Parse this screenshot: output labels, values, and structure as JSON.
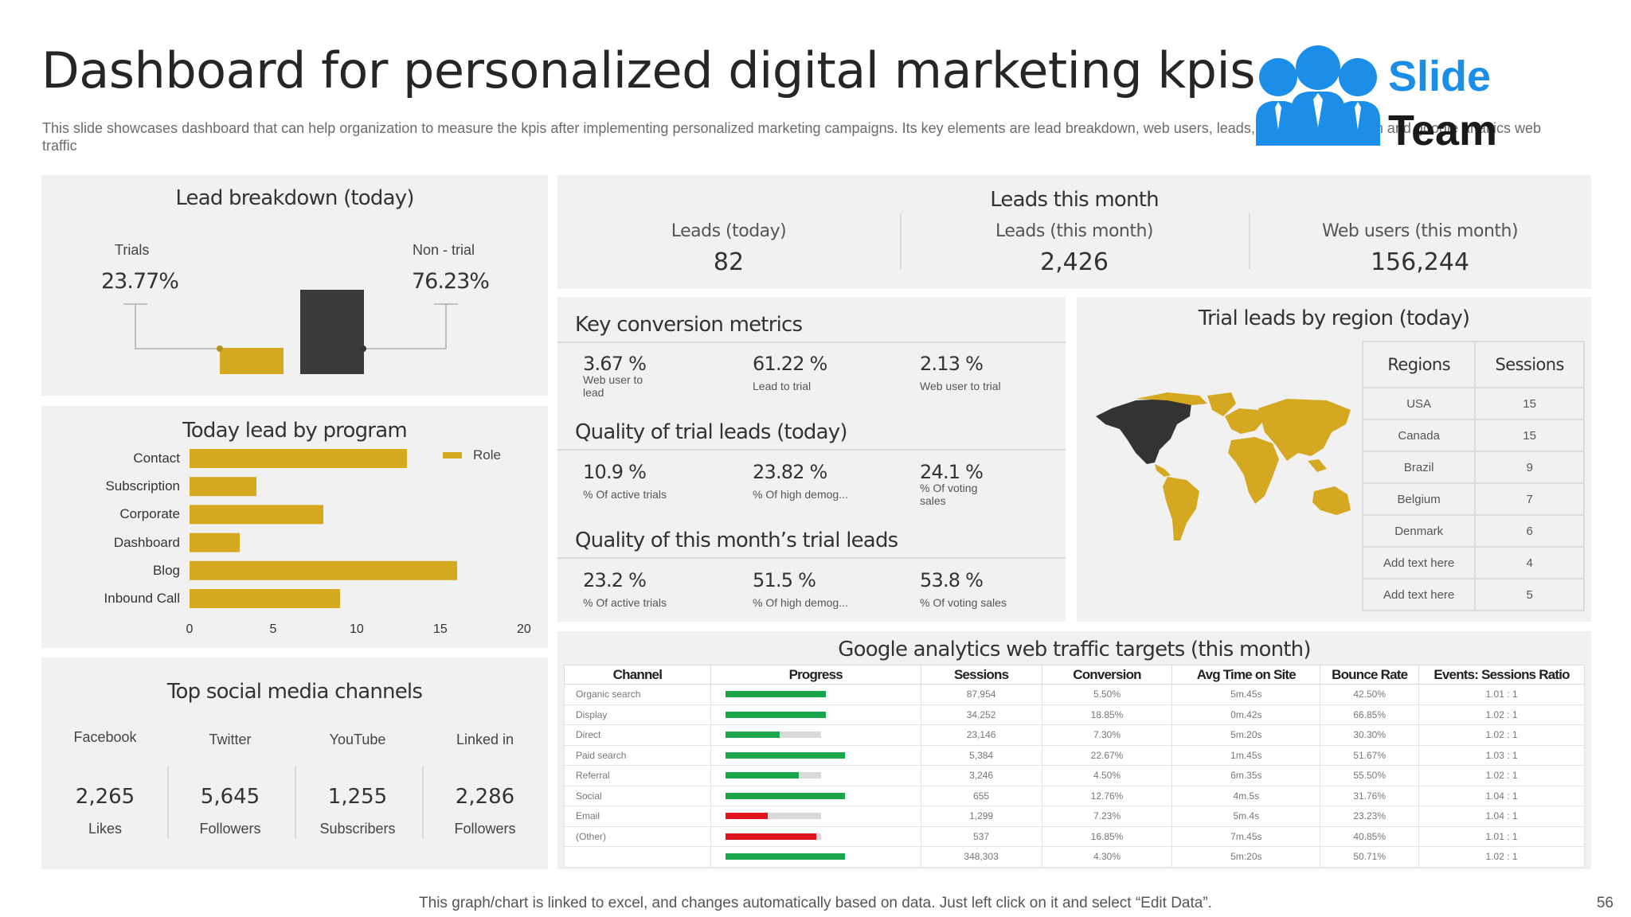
{
  "title": "Dashboard for personalized digital marketing kpis",
  "subtitle": "This slide showcases dashboard that can help organization to measure the kpis after implementing personalized marketing campaigns. Its key elements are lead breakdown, web users, leads, trial leads by region and google analtics web traffic",
  "logo": {
    "word1": "Slide",
    "word2": "Team",
    "color": "#1a8ee8"
  },
  "lead_breakdown": {
    "title": "Lead breakdown (today)",
    "trials_label": "Trials",
    "trials_value": "23.77%",
    "nontrial_label": "Non - trial",
    "nontrial_value": "76.23%",
    "chart_data": {
      "type": "bar",
      "categories": [
        "Trials",
        "Non - trial"
      ],
      "values": [
        23.77,
        76.23
      ],
      "colors": [
        "#d4a820",
        "#3a3a3a"
      ]
    }
  },
  "lead_by_program": {
    "title": "Today lead by program",
    "chart_data": {
      "type": "bar",
      "orientation": "horizontal",
      "categories": [
        "Contact",
        "Subscription",
        "Corporate",
        "Dashboard",
        "Blog",
        "Inbound Call"
      ],
      "series": [
        {
          "name": "Role",
          "values": [
            13,
            4,
            8,
            3,
            16,
            9
          ]
        }
      ],
      "xlim": [
        0,
        20
      ],
      "xticks": [
        "0",
        "5",
        "10",
        "15",
        "20"
      ],
      "color": "#d4a820",
      "legend": "top-right"
    }
  },
  "social": {
    "title": "Top social media channels",
    "channels": [
      {
        "name": "Facebook",
        "value": "2,265",
        "unit": "Likes"
      },
      {
        "name": "Twitter",
        "value": "5,645",
        "unit": "Followers"
      },
      {
        "name": "YouTube",
        "value": "1,255",
        "unit": "Subscribers"
      },
      {
        "name": "Linked in",
        "value": "2,286",
        "unit": "Followers"
      }
    ]
  },
  "leads_month": {
    "title": "Leads this month",
    "items": [
      {
        "label": "Leads (today)",
        "value": "82"
      },
      {
        "label": "Leads (this month)",
        "value": "2,426"
      },
      {
        "label": "Web users (this month)",
        "value": "156,244"
      }
    ]
  },
  "conversion": {
    "title": "Key conversion metrics",
    "items": [
      {
        "value": "3.67 %",
        "label": "Web user to lead"
      },
      {
        "value": "61.22 %",
        "label": "Lead to trial"
      },
      {
        "value": "2.13 %",
        "label": "Web user to trial"
      }
    ]
  },
  "quality_today": {
    "title": "Quality of trial leads (today)",
    "items": [
      {
        "value": "10.9 %",
        "label": "% Of active trials"
      },
      {
        "value": "23.82 %",
        "label": "% Of high demog..."
      },
      {
        "value": "24.1 %",
        "label": "% Of voting sales"
      }
    ]
  },
  "quality_month": {
    "title": "Quality of this month’s trial leads",
    "items": [
      {
        "value": "23.2 %",
        "label": "% Of active trials"
      },
      {
        "value": "51.5 %",
        "label": "% Of high demog..."
      },
      {
        "value": "53.8 %",
        "label": "% Of voting sales"
      }
    ]
  },
  "region": {
    "title": "Trial leads by region (today)",
    "headers": [
      "Regions",
      "Sessions"
    ],
    "rows": [
      [
        "USA",
        "15"
      ],
      [
        "Canada",
        "15"
      ],
      [
        "Brazil",
        "9"
      ],
      [
        "Belgium",
        "7"
      ],
      [
        "Denmark",
        "6"
      ],
      [
        "Add text here",
        "4"
      ],
      [
        "Add text here",
        "5"
      ]
    ],
    "map_color": "#d4a820",
    "highlight_color": "#333333"
  },
  "ga": {
    "title": "Google analytics web traffic targets (this month)",
    "headers": [
      "Channel",
      "Progress",
      "Sessions",
      "Conversion",
      "Avg Time on Site",
      "Bounce Rate",
      "Events: Sessions Ratio"
    ],
    "rows": [
      {
        "channel": "Organic search",
        "progress": 1.05,
        "status": "green",
        "sessions": "87,954",
        "conversion": "5.50%",
        "time": "5m.45s",
        "bounce": "42.50%",
        "ratio": "1.01 : 1"
      },
      {
        "channel": "Display",
        "progress": 1.05,
        "status": "green",
        "sessions": "34,252",
        "conversion": "18.85%",
        "time": "0m.42s",
        "bounce": "66.85%",
        "ratio": "1.02 : 1"
      },
      {
        "channel": "Direct",
        "progress": 0.57,
        "status": "green",
        "sessions": "23,146",
        "conversion": "7.30%",
        "time": "5m.20s",
        "bounce": "30.30%",
        "ratio": "1.02 : 1"
      },
      {
        "channel": "Paid search",
        "progress": 1.25,
        "status": "green",
        "sessions": "5,384",
        "conversion": "22.67%",
        "time": "1m.45s",
        "bounce": "51.67%",
        "ratio": "1.03 : 1"
      },
      {
        "channel": "Referral",
        "progress": 0.77,
        "status": "green",
        "sessions": "3,246",
        "conversion": "4.50%",
        "time": "6m.35s",
        "bounce": "55.50%",
        "ratio": "1.02 : 1"
      },
      {
        "channel": "Social",
        "progress": 1.25,
        "status": "green",
        "sessions": "655",
        "conversion": "12.76%",
        "time": "4m.5s",
        "bounce": "31.76%",
        "ratio": "1.04 : 1"
      },
      {
        "channel": "Email",
        "progress": 0.44,
        "status": "red",
        "sessions": "1,299",
        "conversion": "7.23%",
        "time": "5m.4s",
        "bounce": "23.23%",
        "ratio": "1.04 : 1"
      },
      {
        "channel": "(Other)",
        "progress": 0.95,
        "status": "red",
        "sessions": "537",
        "conversion": "16.85%",
        "time": "7m.45s",
        "bounce": "40.85%",
        "ratio": "1.01 : 1"
      },
      {
        "channel": "",
        "progress": 1.25,
        "status": "green",
        "sessions": "348,303",
        "conversion": "4.30%",
        "time": "5m:20s",
        "bounce": "50.71%",
        "ratio": "1.02 : 1"
      }
    ],
    "colors": {
      "green": "#1aa64a",
      "red": "#e0141e"
    }
  },
  "footer": "This graph/chart is linked to excel, and changes automatically based on data. Just left click on it and select “Edit Data”.",
  "page_number": "56"
}
